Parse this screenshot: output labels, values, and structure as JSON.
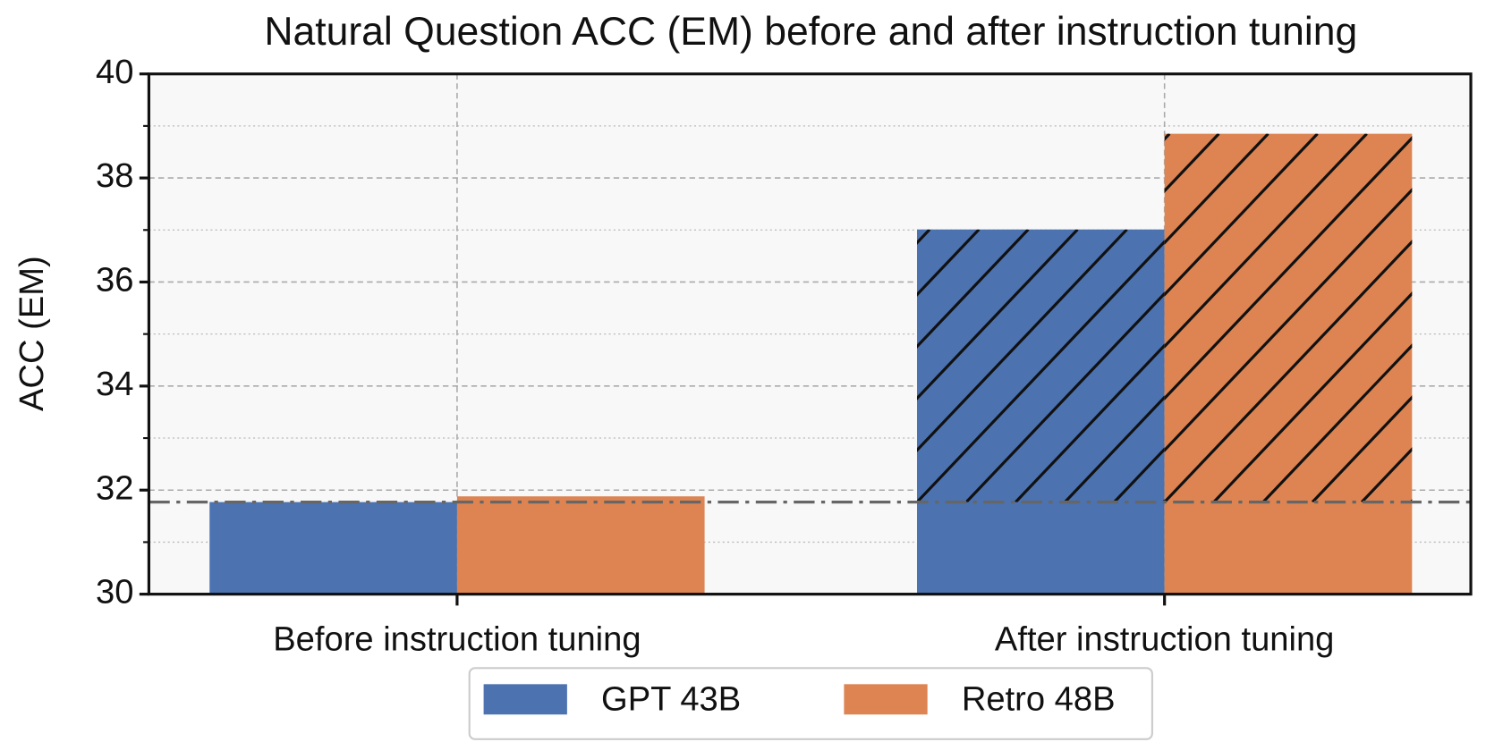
{
  "chart_data": {
    "type": "bar",
    "title": "Natural Question ACC (EM) before and after instruction tuning",
    "y_label": "ACC (EM)",
    "categories": [
      "Before instruction tuning",
      "After instruction tuning"
    ],
    "series": [
      {
        "name": "GPT 43B",
        "color": "#4c72b0",
        "values": [
          31.77,
          37.01
        ]
      },
      {
        "name": "Retro 48B",
        "color": "#dd8452",
        "values": [
          31.88,
          38.85
        ]
      }
    ],
    "reference_line": 31.77,
    "hatch": [
      false,
      true
    ],
    "ylim": [
      30,
      40
    ],
    "yticks": [
      30,
      32,
      34,
      36,
      38,
      40
    ],
    "minor_yticks": [
      31,
      33,
      35,
      37,
      39
    ],
    "grid": true,
    "legend": "bottom"
  }
}
